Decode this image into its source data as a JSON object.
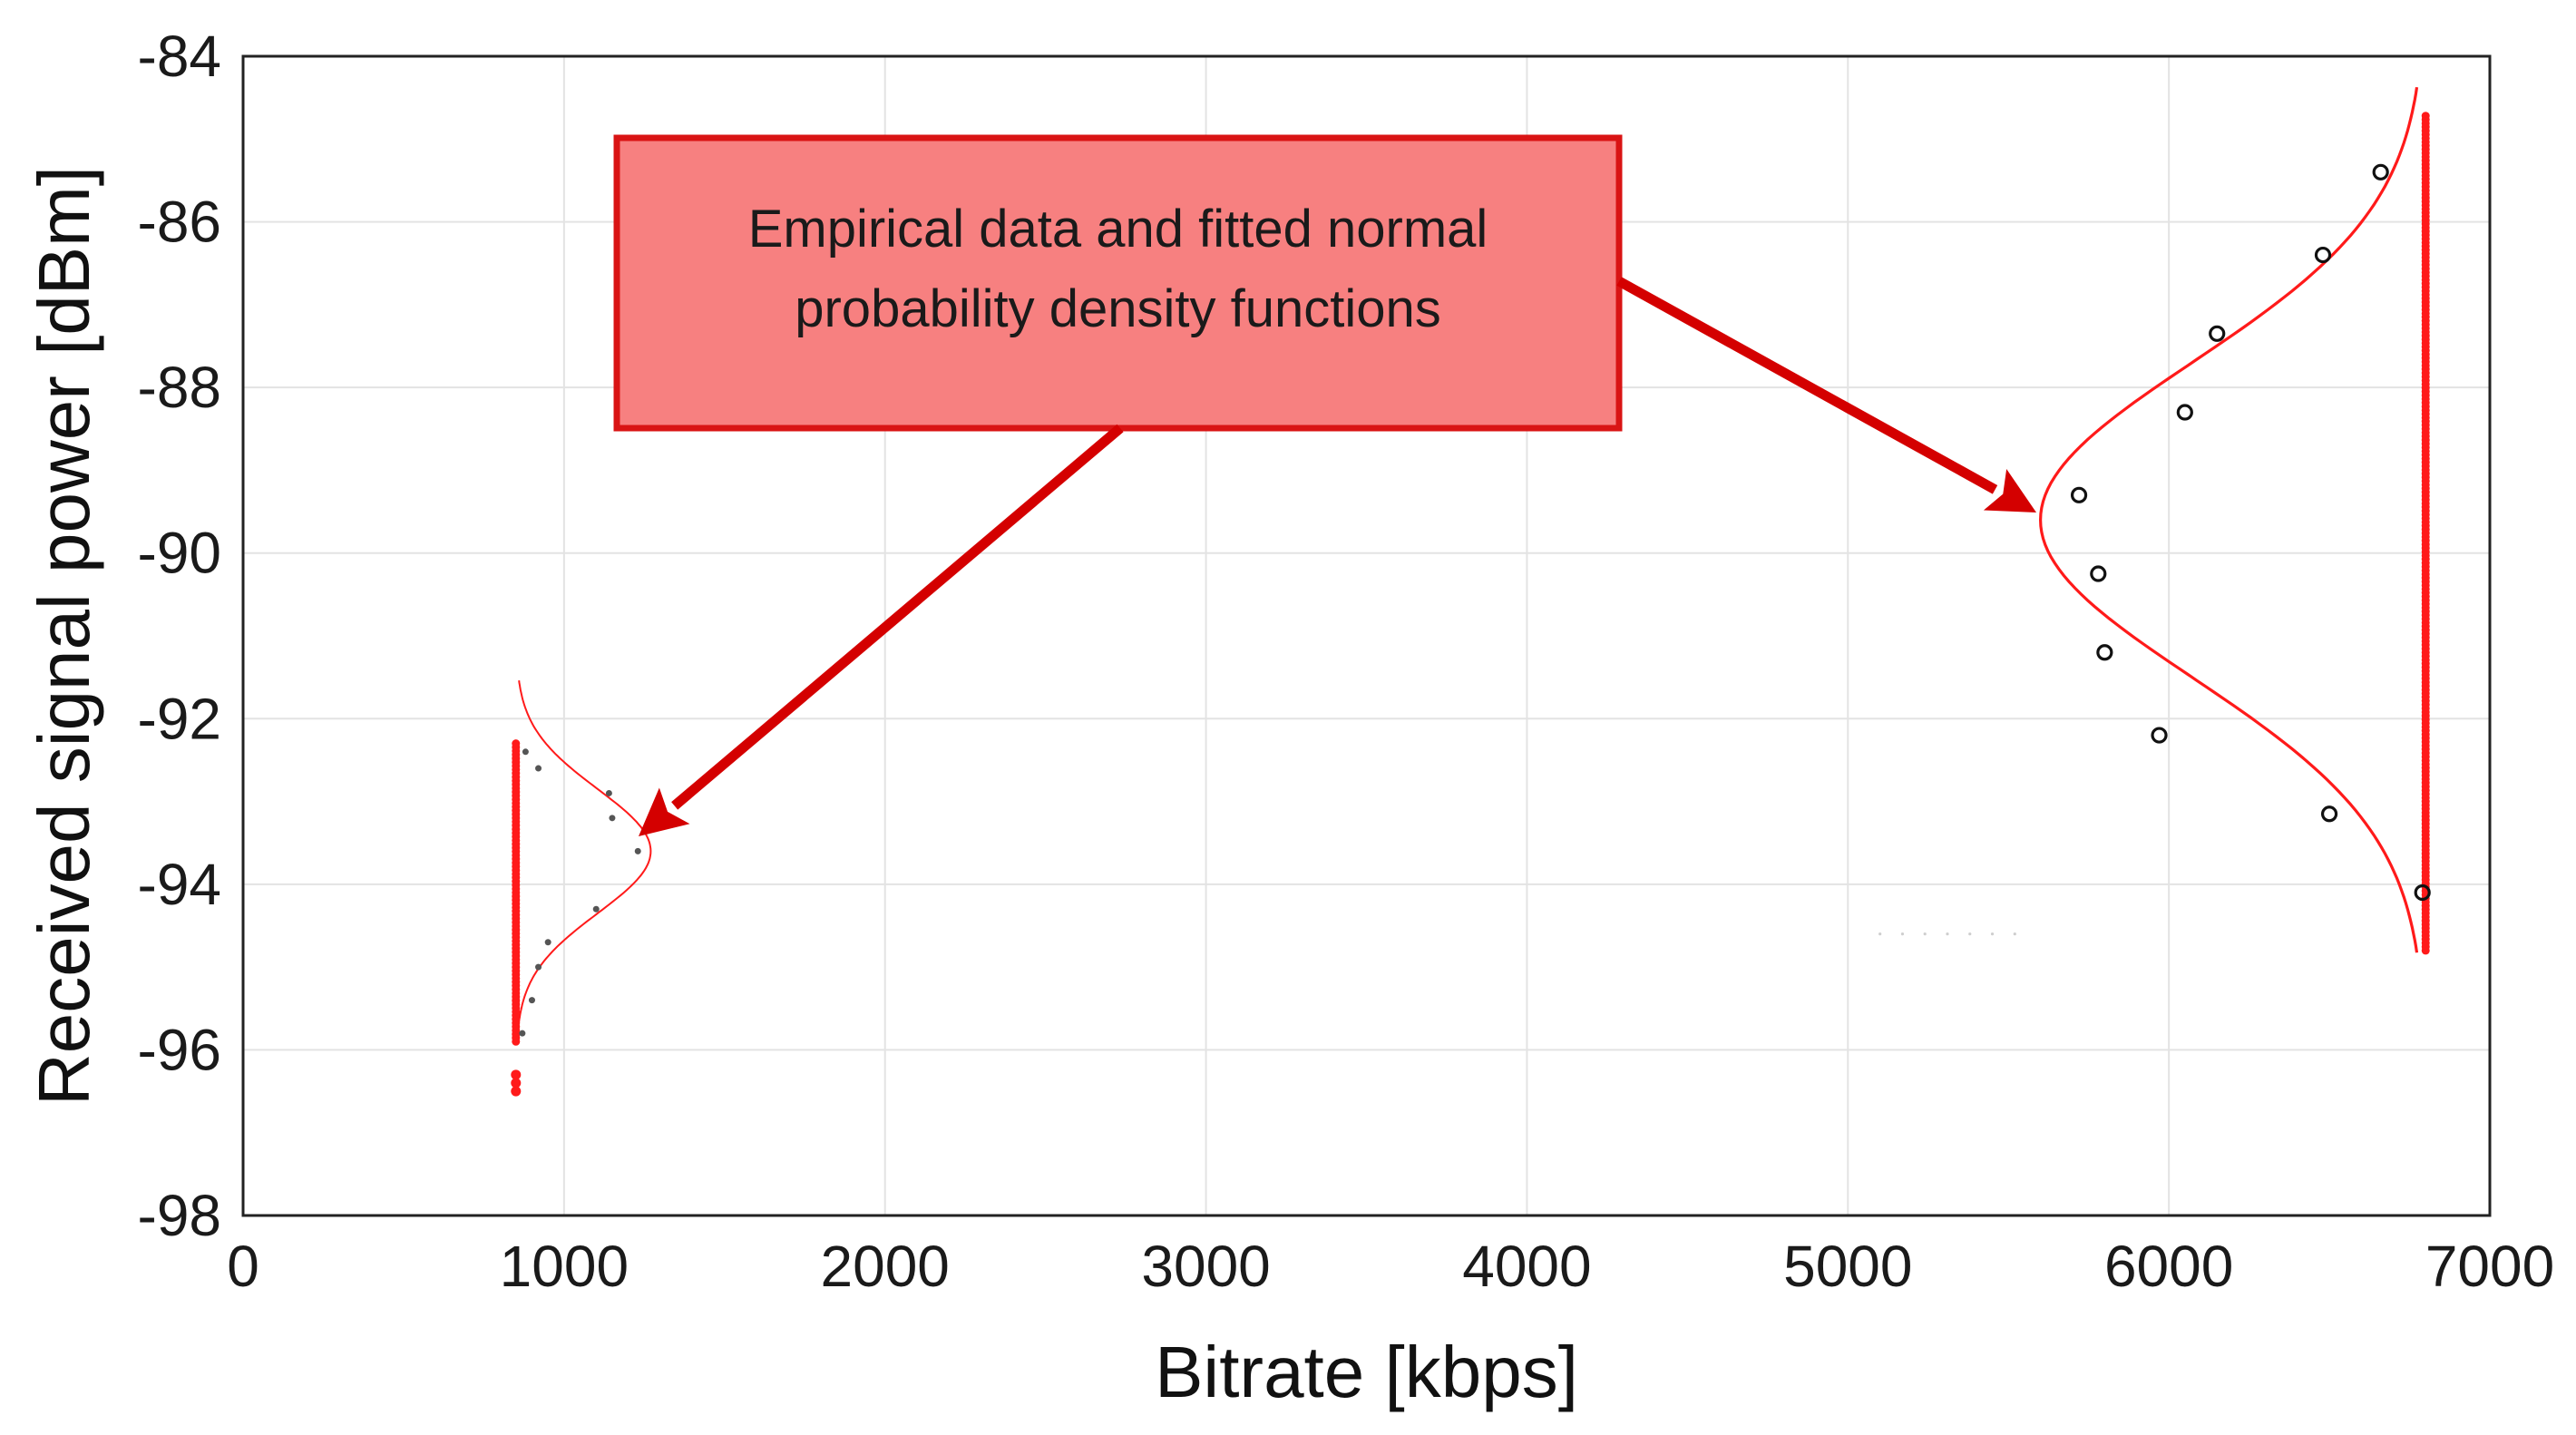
{
  "chart_data": {
    "type": "scatter",
    "title": "",
    "xlabel": "Bitrate [kbps]",
    "ylabel": "Received signal power [dBm]",
    "xlim": [
      0,
      7000
    ],
    "ylim": [
      -98,
      -84
    ],
    "xticks": [
      0,
      1000,
      2000,
      3000,
      4000,
      5000,
      6000,
      7000
    ],
    "yticks": [
      -84,
      -86,
      -88,
      -90,
      -92,
      -94,
      -96,
      -98
    ],
    "grid": true,
    "colors": {
      "samples": "#ff1a1a",
      "fit": "#ff1a1a",
      "empirical": "#111111",
      "annotation_fill": "#f78080",
      "annotation_border": "#d91414",
      "arrow": "#d40000"
    },
    "clusters": [
      {
        "x": 850,
        "y_min": -95.9,
        "y_max": -92.3,
        "outliers_y": [
          -96.3,
          -96.4,
          -96.5
        ],
        "fit": {
          "mean": -93.6,
          "sigma": 0.75,
          "base_x": 850,
          "peak_x": 1270
        },
        "empirical": [
          {
            "x": 880,
            "y": -92.4
          },
          {
            "x": 920,
            "y": -92.6
          },
          {
            "x": 1140,
            "y": -92.9
          },
          {
            "x": 1150,
            "y": -93.2
          },
          {
            "x": 1230,
            "y": -93.6
          },
          {
            "x": 1100,
            "y": -94.3
          },
          {
            "x": 950,
            "y": -94.7
          },
          {
            "x": 920,
            "y": -95.0
          },
          {
            "x": 900,
            "y": -95.4
          },
          {
            "x": 870,
            "y": -95.8
          }
        ]
      },
      {
        "x": 6800,
        "y_min": -94.8,
        "y_max": -84.7,
        "outliers_y": [],
        "fit": {
          "mean": -89.6,
          "sigma": 1.9,
          "base_x": 6800,
          "peak_x": 5600
        },
        "empirical": [
          {
            "x": 6660,
            "y": -85.4
          },
          {
            "x": 6480,
            "y": -86.4
          },
          {
            "x": 6150,
            "y": -87.35
          },
          {
            "x": 6050,
            "y": -88.3
          },
          {
            "x": 5720,
            "y": -89.3
          },
          {
            "x": 5780,
            "y": -90.25
          },
          {
            "x": 5800,
            "y": -91.2
          },
          {
            "x": 5970,
            "y": -92.2
          },
          {
            "x": 6500,
            "y": -93.15
          },
          {
            "x": 6790,
            "y": -94.1
          }
        ]
      }
    ]
  },
  "annotation": {
    "line1": "Empirical data and fitted normal",
    "line2": "probability density functions"
  }
}
